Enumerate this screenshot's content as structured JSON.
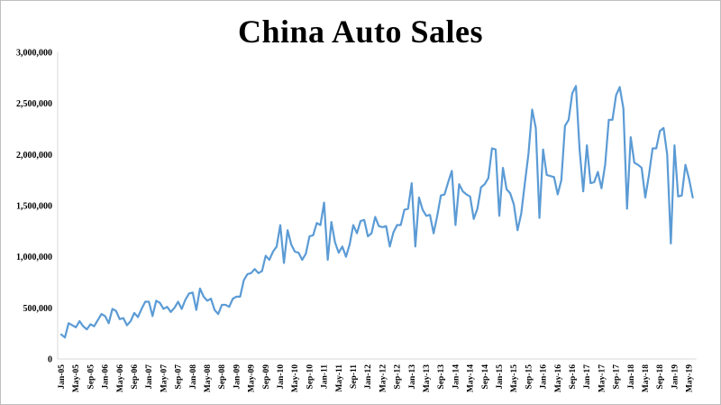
{
  "chart_data": {
    "type": "line",
    "title": "China Auto Sales",
    "xlabel": "",
    "ylabel": "",
    "ylim": [
      0,
      3000000
    ],
    "grid": false,
    "line_color": "#5b9bd5",
    "start_month": "Jan-05",
    "yticks": [
      "0",
      "500,000",
      "1,000,000",
      "1,500,000",
      "2,000,000",
      "2,500,000",
      "3,000,000"
    ],
    "xtick_labels": [
      "Jan-05",
      "May-05",
      "Sep-05",
      "Jan-06",
      "May-06",
      "Sep-06",
      "Jan-07",
      "May-07",
      "Sep-07",
      "Jan-08",
      "May-08",
      "Sep-08",
      "Jan-09",
      "May-09",
      "Sep-09",
      "Jan-10",
      "May-10",
      "Sep-10",
      "Jan-11",
      "May-11",
      "Sep-11",
      "Jan-12",
      "May-12",
      "Sep-12",
      "Jan-13",
      "May-13",
      "Sep-13",
      "Jan-14",
      "May-14",
      "Sep-14",
      "Jan-15",
      "May-15",
      "Sep-15",
      "Jan-16",
      "May-16",
      "Sep-16",
      "Jan-17",
      "May-17",
      "Sep-17",
      "Jan-18",
      "May-18",
      "Sep-18",
      "Jan-19",
      "May-19"
    ],
    "series": [
      {
        "name": "",
        "values": [
          240000,
          210000,
          350000,
          330000,
          310000,
          370000,
          320000,
          290000,
          340000,
          320000,
          380000,
          440000,
          420000,
          350000,
          490000,
          470000,
          390000,
          400000,
          330000,
          370000,
          450000,
          410000,
          490000,
          560000,
          560000,
          420000,
          570000,
          550000,
          490000,
          510000,
          460000,
          500000,
          560000,
          490000,
          580000,
          640000,
          650000,
          480000,
          690000,
          610000,
          570000,
          590000,
          480000,
          440000,
          530000,
          530000,
          510000,
          590000,
          610000,
          610000,
          770000,
          830000,
          840000,
          880000,
          840000,
          860000,
          1010000,
          970000,
          1050000,
          1100000,
          1310000,
          940000,
          1260000,
          1120000,
          1050000,
          1040000,
          970000,
          1030000,
          1200000,
          1210000,
          1330000,
          1310000,
          1530000,
          970000,
          1340000,
          1140000,
          1040000,
          1100000,
          1000000,
          1120000,
          1310000,
          1230000,
          1350000,
          1360000,
          1200000,
          1230000,
          1390000,
          1300000,
          1290000,
          1300000,
          1100000,
          1240000,
          1310000,
          1310000,
          1460000,
          1470000,
          1720000,
          1100000,
          1580000,
          1460000,
          1400000,
          1410000,
          1230000,
          1400000,
          1600000,
          1610000,
          1730000,
          1840000,
          1310000,
          1710000,
          1640000,
          1610000,
          1590000,
          1370000,
          1470000,
          1680000,
          1710000,
          1770000,
          2060000,
          2050000,
          1400000,
          1870000,
          1660000,
          1620000,
          1510000,
          1260000,
          1420000,
          1720000,
          2010000,
          2440000,
          2260000,
          1380000,
          2050000,
          1800000,
          1790000,
          1780000,
          1610000,
          1750000,
          2280000,
          2340000,
          2600000,
          2670000,
          2050000,
          1640000,
          2090000,
          1720000,
          1730000,
          1830000,
          1670000,
          1900000,
          2340000,
          2340000,
          2580000,
          2660000,
          2450000,
          1470000,
          2170000,
          1920000,
          1900000,
          1870000,
          1580000,
          1800000,
          2060000,
          2060000,
          2230000,
          2260000,
          2000000,
          1130000,
          2090000,
          1590000,
          1600000,
          1900000,
          1760000,
          1580000
        ]
      }
    ]
  }
}
